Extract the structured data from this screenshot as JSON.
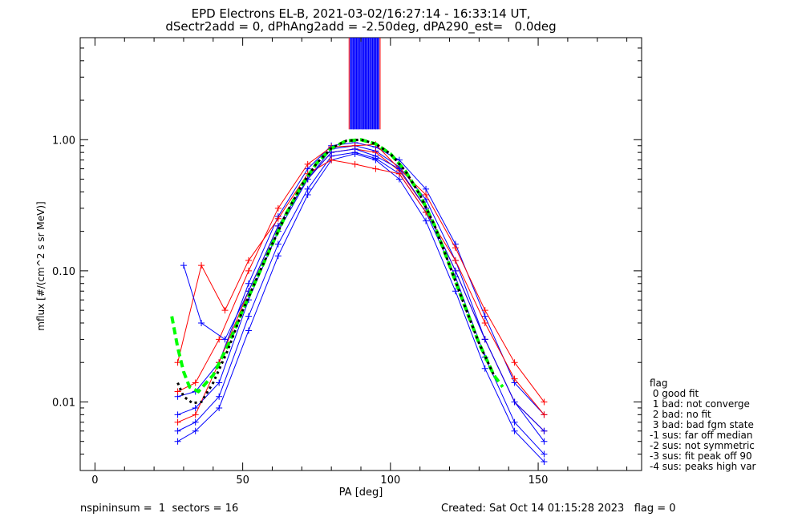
{
  "title": {
    "line1": "EPD Electrons EL-B, 2021-03-02/16:27:14 - 16:33:14 UT,",
    "line2": "dSectr2add = 0, dPhAng2add = -2.50deg, dPA290_est=   0.0deg"
  },
  "footer": {
    "left": "nspininsum =  1  sectors = 16",
    "right": "Created: Sat Oct 14 01:15:28 2023   flag = 0"
  },
  "legend": {
    "title": "flag",
    "items": [
      " 0 good fit",
      " 1 bad: not converge",
      " 2 bad: no fit",
      " 3 bad: bad fgm state",
      "-1 sus: far off median",
      "-2 sus: not symmetric",
      "-3 sus: fit peak off 90",
      "-4 sus: peaks high var"
    ]
  },
  "colors": {
    "blue_series": "#0000ff",
    "red_series": "#ff0000",
    "fit_green": "#00ff00",
    "fit_black": "#000000"
  },
  "chart_data": {
    "type": "line",
    "xlabel": "PA [deg]",
    "ylabel": "mflux [#/(cm^2 s sr MeV)]",
    "xlim": [
      -5,
      185
    ],
    "ylim": [
      0.003,
      6.0
    ],
    "yscale": "log",
    "xticks": [
      0,
      50,
      100,
      150
    ],
    "xtick_labels": [
      "0",
      "50",
      "100",
      "150"
    ],
    "yticks": [
      0.01,
      0.1,
      1.0
    ],
    "ytick_labels": [
      "0.01",
      "0.10",
      "1.00"
    ],
    "series": [
      {
        "color": "blue",
        "x": [
          28,
          34,
          42,
          52,
          62,
          72,
          80,
          88,
          95,
          103,
          112,
          122,
          132,
          142,
          152
        ],
        "y": [
          0.008,
          0.009,
          0.014,
          0.06,
          0.2,
          0.5,
          0.85,
          0.9,
          0.82,
          0.62,
          0.35,
          0.12,
          0.03,
          0.01,
          0.005
        ]
      },
      {
        "color": "blue",
        "x": [
          28,
          34,
          42,
          52,
          62,
          72,
          80,
          88,
          95,
          103,
          112,
          122,
          132,
          142,
          152
        ],
        "y": [
          0.006,
          0.007,
          0.011,
          0.045,
          0.16,
          0.42,
          0.75,
          0.8,
          0.72,
          0.55,
          0.28,
          0.09,
          0.022,
          0.007,
          0.004
        ]
      },
      {
        "color": "blue",
        "x": [
          28,
          34,
          42,
          52,
          62,
          72,
          80,
          88,
          95,
          103,
          112,
          122,
          132,
          142,
          152
        ],
        "y": [
          0.011,
          0.012,
          0.02,
          0.08,
          0.26,
          0.6,
          0.9,
          0.95,
          0.88,
          0.7,
          0.42,
          0.16,
          0.045,
          0.014,
          0.008
        ]
      },
      {
        "color": "blue",
        "x": [
          28,
          34,
          42,
          52,
          62,
          72,
          80,
          88,
          95,
          103,
          112,
          122,
          132,
          142,
          152
        ],
        "y": [
          0.005,
          0.006,
          0.009,
          0.035,
          0.13,
          0.38,
          0.7,
          0.78,
          0.7,
          0.5,
          0.24,
          0.07,
          0.018,
          0.006,
          0.0035
        ]
      },
      {
        "color": "red",
        "x": [
          28,
          34,
          42,
          52,
          62,
          72,
          80,
          88,
          95,
          103,
          112,
          122,
          132,
          142,
          152
        ],
        "y": [
          0.012,
          0.014,
          0.03,
          0.1,
          0.3,
          0.65,
          0.88,
          0.9,
          0.92,
          0.6,
          0.38,
          0.15,
          0.05,
          0.02,
          0.01
        ]
      },
      {
        "color": "red",
        "x": [
          28,
          34,
          42,
          52,
          62,
          72,
          80,
          88,
          95,
          103,
          112,
          122,
          132,
          142,
          152
        ],
        "y": [
          0.007,
          0.008,
          0.02,
          0.07,
          0.22,
          0.5,
          0.8,
          0.85,
          0.8,
          0.58,
          0.3,
          0.1,
          0.03,
          0.01,
          0.006
        ]
      },
      {
        "color": "red",
        "x": [
          28,
          36,
          44,
          52,
          62,
          72,
          80,
          88,
          95,
          103,
          112,
          122,
          132,
          142,
          152
        ],
        "y": [
          0.02,
          0.11,
          0.05,
          0.12,
          0.25,
          0.55,
          0.7,
          0.65,
          0.6,
          0.55,
          0.28,
          0.12,
          0.04,
          0.015,
          0.008
        ]
      },
      {
        "color": "blue",
        "x": [
          30,
          36,
          44,
          52,
          62,
          72,
          80,
          88,
          95,
          103,
          112,
          122,
          132,
          142,
          152
        ],
        "y": [
          0.11,
          0.04,
          0.03,
          0.07,
          0.22,
          0.5,
          0.8,
          0.85,
          0.75,
          0.6,
          0.3,
          0.1,
          0.03,
          0.01,
          0.006
        ]
      }
    ],
    "fits": [
      {
        "color": "green",
        "style": "dashed",
        "x": [
          26,
          28,
          30,
          32,
          35,
          40,
          45,
          50,
          55,
          60,
          65,
          70,
          75,
          80,
          85,
          90,
          95,
          100,
          105,
          110,
          115,
          120,
          125,
          130,
          135,
          138
        ],
        "y": [
          0.045,
          0.026,
          0.017,
          0.013,
          0.012,
          0.016,
          0.027,
          0.05,
          0.09,
          0.16,
          0.28,
          0.45,
          0.66,
          0.86,
          0.98,
          1.0,
          0.93,
          0.78,
          0.58,
          0.38,
          0.22,
          0.11,
          0.055,
          0.028,
          0.016,
          0.013
        ]
      },
      {
        "color": "black",
        "style": "dotted",
        "x": [
          28,
          30,
          33,
          36,
          40,
          45,
          50,
          55,
          60,
          65,
          70,
          75,
          80,
          85,
          90,
          95,
          100,
          105,
          110,
          115,
          120,
          125,
          130,
          135
        ],
        "y": [
          0.014,
          0.011,
          0.0098,
          0.01,
          0.014,
          0.025,
          0.05,
          0.09,
          0.16,
          0.28,
          0.45,
          0.66,
          0.86,
          0.98,
          1.0,
          0.93,
          0.78,
          0.58,
          0.38,
          0.22,
          0.11,
          0.055,
          0.028,
          0.016
        ]
      }
    ],
    "vertical_markers": [
      {
        "color": "red",
        "x": [
          86,
          87.5,
          89,
          90.5,
          92,
          93.5,
          95,
          96.5
        ],
        "y_from": 1.2,
        "y_to": 6.0
      },
      {
        "color": "blue",
        "x": [
          86.5,
          87,
          87.5,
          88,
          88.5,
          89,
          89.5,
          90,
          90.5,
          91,
          91.5,
          92,
          92.5,
          93,
          93.5,
          94,
          94.5,
          95,
          95.5,
          96
        ],
        "y_from": 1.2,
        "y_to": 6.0
      }
    ]
  }
}
